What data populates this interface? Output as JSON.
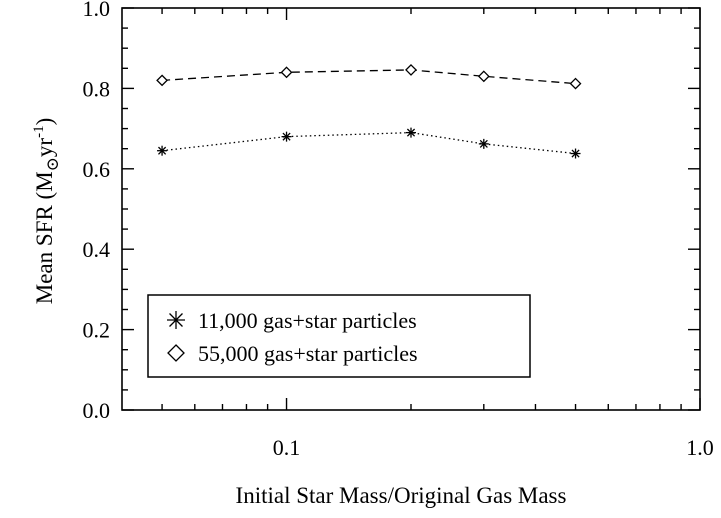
{
  "chart_data": {
    "type": "line",
    "xscale": "log",
    "xlim": [
      0.04,
      1.0
    ],
    "ylim": [
      0.0,
      1.0
    ],
    "xlabel": "Initial Star Mass/Original Gas Mass",
    "ylabel": {
      "main": "Mean SFR (M",
      "sub": "⊙",
      "mid": "yr",
      "sup": "-1",
      "end": ")"
    },
    "x_ticks": [
      {
        "value": 0.1,
        "label": "0.1"
      },
      {
        "value": 1.0,
        "label": "1.0"
      }
    ],
    "x_minor_ticks": [
      0.05,
      0.06,
      0.07,
      0.08,
      0.09,
      0.2,
      0.3,
      0.4,
      0.5,
      0.6,
      0.7,
      0.8,
      0.9
    ],
    "y_ticks": [
      {
        "value": 0.0,
        "label": "0.0"
      },
      {
        "value": 0.2,
        "label": "0.2"
      },
      {
        "value": 0.4,
        "label": "0.4"
      },
      {
        "value": 0.6,
        "label": "0.6"
      },
      {
        "value": 0.8,
        "label": "0.8"
      },
      {
        "value": 1.0,
        "label": "1.0"
      }
    ],
    "y_minor_step": 0.05,
    "x": [
      0.05,
      0.1,
      0.2,
      0.3,
      0.5
    ],
    "series": [
      {
        "name": "11,000 gas+star particles",
        "marker": "asterisk",
        "line_style": "dotted",
        "values": [
          0.645,
          0.68,
          0.69,
          0.662,
          0.638
        ]
      },
      {
        "name": "55,000 gas+star particles",
        "marker": "diamond",
        "line_style": "dashed",
        "values": [
          0.82,
          0.84,
          0.846,
          0.83,
          0.812
        ]
      }
    ],
    "legend_position": "bottom-left",
    "grid": false
  }
}
